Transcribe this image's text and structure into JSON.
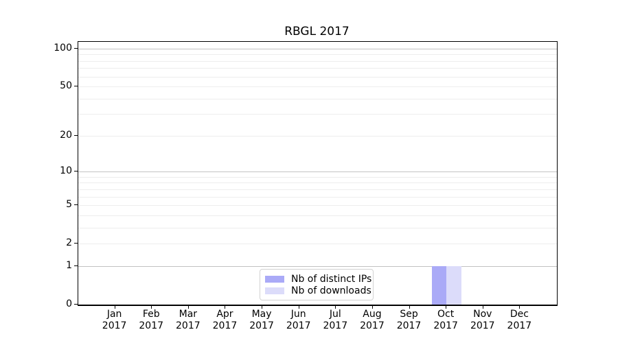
{
  "title": "RBGL 2017",
  "colors": {
    "distinct_ips": "#aaaaf7",
    "downloads": "#dcdcfa",
    "grid_major": "#c2c2c2",
    "grid_minor": "#ededed",
    "axis": "#000000",
    "legend_border": "#d2d2d2"
  },
  "legend": {
    "position": "lower center",
    "items": [
      {
        "label": "Nb of distinct IPs",
        "color_key": "distinct_ips"
      },
      {
        "label": "Nb of downloads",
        "color_key": "downloads"
      }
    ]
  },
  "chart_data": {
    "type": "bar",
    "title": "RBGL 2017",
    "categories": [
      "Jan 2017",
      "Feb 2017",
      "Mar 2017",
      "Apr 2017",
      "May 2017",
      "Jun 2017",
      "Jul 2017",
      "Aug 2017",
      "Sep 2017",
      "Oct 2017",
      "Nov 2017",
      "Dec 2017"
    ],
    "x_tick_months": [
      "Jan",
      "Feb",
      "Mar",
      "Apr",
      "May",
      "Jun",
      "Jul",
      "Aug",
      "Sep",
      "Oct",
      "Nov",
      "Dec"
    ],
    "x_tick_year": "2017",
    "series": [
      {
        "name": "Nb of distinct IPs",
        "color_key": "distinct_ips",
        "values": [
          0,
          0,
          0,
          0,
          0,
          0,
          0,
          0,
          0,
          1,
          0,
          0
        ]
      },
      {
        "name": "Nb of downloads",
        "color_key": "downloads",
        "values": [
          0,
          0,
          0,
          0,
          0,
          0,
          0,
          0,
          0,
          1,
          0,
          0
        ]
      }
    ],
    "xlabel": "",
    "ylabel": "",
    "y_scale": "log1p",
    "ylim": [
      0,
      113.3
    ],
    "y_tick_values": [
      0,
      1,
      2,
      5,
      10,
      20,
      50,
      100
    ],
    "y_major_gridlines": [
      1,
      10,
      100
    ],
    "y_minor_gridlines": [
      2,
      3,
      4,
      5,
      6,
      7,
      8,
      9,
      20,
      30,
      40,
      50,
      60,
      70,
      80,
      90
    ],
    "grid": true,
    "legend_position": "lower center"
  }
}
